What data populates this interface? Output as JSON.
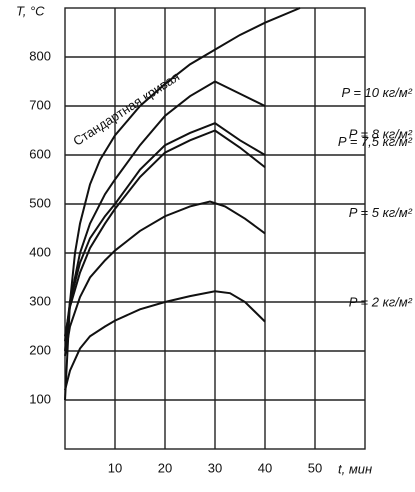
{
  "chart_data": {
    "type": "line",
    "y_label": "T, °C",
    "x_label": "t, мин",
    "xlim": [
      0,
      60
    ],
    "ylim": [
      0,
      900
    ],
    "xticks": [
      10,
      20,
      30,
      40,
      50
    ],
    "yticks": [
      100,
      200,
      300,
      400,
      500,
      600,
      700,
      800
    ],
    "grid": true,
    "series": [
      {
        "name": "Стандартная кривая",
        "color": "#111111",
        "x": [
          0,
          1,
          2,
          3,
          5,
          7,
          10,
          15,
          20,
          25,
          30,
          35,
          40,
          47
        ],
        "values": [
          100,
          300,
          400,
          460,
          540,
          590,
          640,
          700,
          745,
          785,
          815,
          845,
          870,
          900
        ]
      },
      {
        "name": "P = 10 кг/м²",
        "color": "#111111",
        "x": [
          0,
          1,
          3,
          5,
          8,
          10,
          15,
          20,
          25,
          30,
          35,
          40
        ],
        "values": [
          200,
          300,
          400,
          460,
          520,
          550,
          620,
          680,
          720,
          750,
          725,
          700
        ]
      },
      {
        "name": "P = 8 кг/м²",
        "color": "#111111",
        "x": [
          0,
          1,
          3,
          5,
          8,
          10,
          15,
          20,
          25,
          30,
          35,
          40
        ],
        "values": [
          220,
          300,
          380,
          430,
          475,
          500,
          570,
          620,
          645,
          665,
          630,
          600
        ]
      },
      {
        "name": "P = 7,5 кг/м²",
        "color": "#111111",
        "x": [
          0,
          1,
          3,
          5,
          8,
          10,
          15,
          20,
          25,
          30,
          35,
          40
        ],
        "values": [
          230,
          290,
          360,
          410,
          460,
          490,
          555,
          605,
          630,
          650,
          615,
          575
        ]
      },
      {
        "name": "P = 5 кг/м²",
        "color": "#111111",
        "x": [
          0,
          1,
          3,
          5,
          8,
          10,
          15,
          20,
          25,
          29,
          32,
          36,
          40
        ],
        "values": [
          190,
          250,
          310,
          350,
          385,
          405,
          445,
          475,
          495,
          505,
          495,
          470,
          440
        ]
      },
      {
        "name": "P = 2 кг/м²",
        "color": "#111111",
        "x": [
          0,
          1,
          3,
          5,
          8,
          10,
          15,
          20,
          25,
          30,
          33,
          36,
          40
        ],
        "values": [
          120,
          160,
          205,
          230,
          250,
          262,
          285,
          300,
          312,
          322,
          318,
          300,
          260
        ]
      }
    ]
  }
}
